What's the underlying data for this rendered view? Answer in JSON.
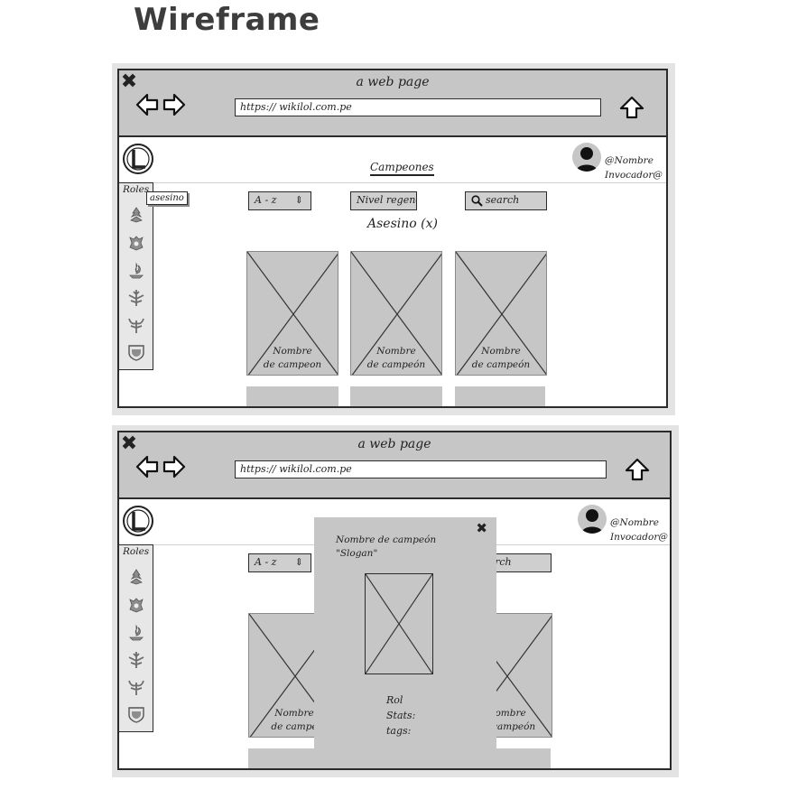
{
  "page": {
    "title": "Wireframe"
  },
  "frames": [
    {
      "window_title": "a web page",
      "url": "https:// wikilol.com.pe",
      "nav_link": "Campeones",
      "user": {
        "line1": "@Nombre",
        "line2": "Invocador@"
      },
      "roles_label": "Roles",
      "role_icons": [
        "assassin-icon",
        "fighter-icon",
        "mage-icon",
        "marksman-icon",
        "support-icon",
        "tank-icon"
      ],
      "tooltip": "asesino",
      "sort": {
        "label": "A - z",
        "arrows": "⇕"
      },
      "regen_filter": "Nivel regeneración",
      "search_placeholder": "search",
      "active_filter": "Asesino (x)",
      "cards": [
        {
          "line1": "Nombre",
          "line2": "de campeon"
        },
        {
          "line1": "Nombre",
          "line2": "de campeón"
        },
        {
          "line1": "Nombre",
          "line2": "de campeón"
        }
      ]
    },
    {
      "window_title": "a web page",
      "url": "https:// wikilol.com.pe",
      "user": {
        "line1": "@Nombre",
        "line2": "Invocador@"
      },
      "roles_label": "Roles",
      "sort": {
        "label": "A - z",
        "arrows": "⇕"
      },
      "search_partial": "earch",
      "cards": [
        {
          "line1": "Nombre",
          "line2": "de campe"
        },
        {
          "line1": "Nombre",
          "line2": "de campeón"
        }
      ],
      "modal": {
        "close": "✖",
        "title": "Nombre de campeón",
        "slogan": "\"Slogan\"",
        "rol": "Rol",
        "stats": "Stats:",
        "tags": "tags:"
      }
    }
  ]
}
